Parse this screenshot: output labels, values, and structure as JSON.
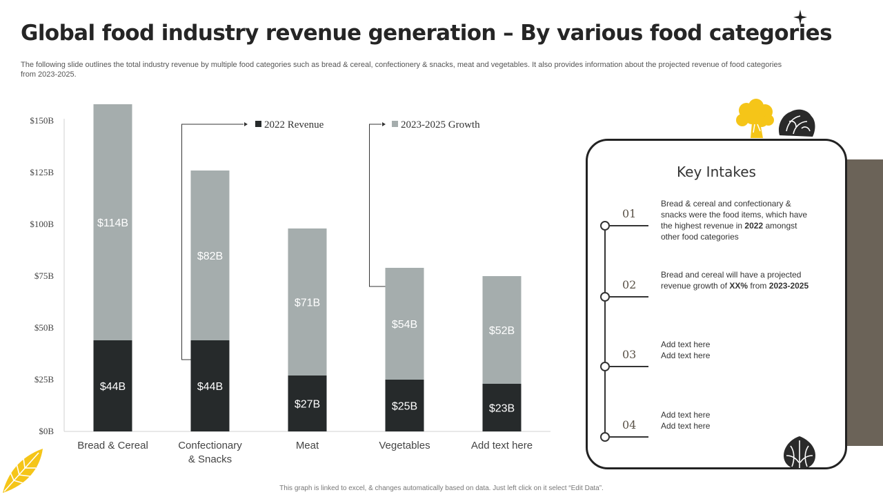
{
  "header": {
    "title": "Global food industry revenue generation – By various food categories",
    "subtitle": "The following slide outlines the total industry revenue by multiple food categories such as bread & cereal, confectionery & snacks, meat and vegetables. It also provides information about the projected revenue of food categories from 2023-2025."
  },
  "chart_data": {
    "type": "bar",
    "stacked": true,
    "categories": [
      "Bread  & Cereal",
      "Confectionary  & Snacks",
      "Meat",
      "Vegetables",
      "Add text here"
    ],
    "series": [
      {
        "name": "2022 Revenue",
        "values": [
          44,
          44,
          27,
          25,
          23
        ],
        "labels": [
          "$44B",
          "$44B",
          "$27B",
          "$25B",
          "$23B"
        ],
        "color": "#262a2b"
      },
      {
        "name": "2023-2025 Growth",
        "values": [
          114,
          82,
          71,
          54,
          52
        ],
        "labels": [
          "$114B",
          "$82B",
          "$71B",
          "$54B",
          "$52B"
        ],
        "color": "#a5adad"
      }
    ],
    "ylim": [
      0,
      150
    ],
    "yticks": [
      0,
      25,
      50,
      75,
      100,
      125,
      150
    ],
    "ytick_labels": [
      "$0B",
      "$25B",
      "$50B",
      "$75B",
      "$100B",
      "$125B",
      "$150B"
    ],
    "grid": false,
    "legend_position": "top"
  },
  "key_intakes": {
    "title": "Key Intakes",
    "items": [
      {
        "number": "01",
        "text_parts": [
          {
            "text": "Bread & cereal and confectionary & snacks were the food items, which have the highest revenue  in ",
            "bold": false
          },
          {
            "text": "2022",
            "bold": true
          },
          {
            "text": " amongst other food categories",
            "bold": false
          }
        ]
      },
      {
        "number": "02",
        "text_parts": [
          {
            "text": "Bread and cereal will have a projected revenue  growth of ",
            "bold": false
          },
          {
            "text": "XX%",
            "bold": true
          },
          {
            "text": " from ",
            "bold": false
          },
          {
            "text": "2023-2025",
            "bold": true
          }
        ]
      },
      {
        "number": "03",
        "text_parts": [
          {
            "text": "Add text here\nAdd text here",
            "bold": false
          }
        ]
      },
      {
        "number": "04",
        "text_parts": [
          {
            "text": "Add text here\nAdd text here",
            "bold": false
          }
        ]
      }
    ]
  },
  "footnote": "This graph is linked to excel, & changes automatically based on data. Just left click on it select “Edit Data”.",
  "colors": {
    "revenue_2022": "#262a2b",
    "growth_2023_2025": "#a5adad",
    "accent_yellow": "#f5c518",
    "side_bar": "#6b6358",
    "decor_dark": "#2a2a2a"
  },
  "icons": [
    "sparkle-icon",
    "broccoli-icon",
    "cabbage-icon",
    "artichoke-icon",
    "leaf-icon"
  ]
}
